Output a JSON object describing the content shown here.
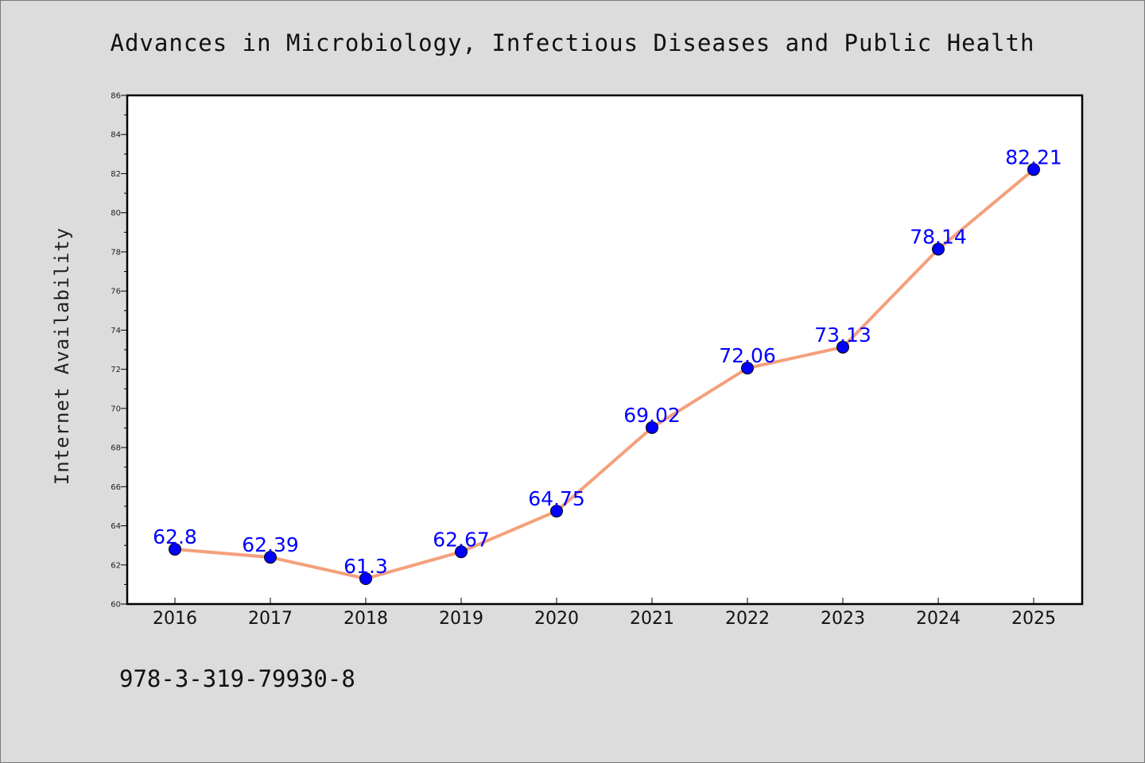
{
  "chart_data": {
    "type": "line",
    "title": "Advances in Microbiology, Infectious Diseases and Public Health",
    "xlabel": "",
    "ylabel": "Internet Availability",
    "categories": [
      "2016",
      "2017",
      "2018",
      "2019",
      "2020",
      "2021",
      "2022",
      "2023",
      "2024",
      "2025"
    ],
    "series": [
      {
        "values": [
          62.8,
          62.39,
          61.3,
          62.67,
          64.75,
          69.02,
          72.06,
          73.13,
          78.14,
          82.21
        ],
        "labels": [
          "62.8",
          "62.39",
          "61.3",
          "62.67",
          "64.75",
          "69.02",
          "72.06",
          "73.13",
          "78.14",
          "82.21"
        ],
        "line_color": "#f4a07c",
        "marker_color": "#0000ff"
      }
    ],
    "ylim": [
      60,
      86
    ],
    "yticks": [
      "60",
      "62",
      "64",
      "66",
      "68",
      "70",
      "72",
      "74",
      "76",
      "78",
      "80",
      "82",
      "84",
      "86"
    ],
    "grid": false,
    "legend": "none"
  },
  "footer": {
    "isbn": "978-3-319-79930-8"
  }
}
